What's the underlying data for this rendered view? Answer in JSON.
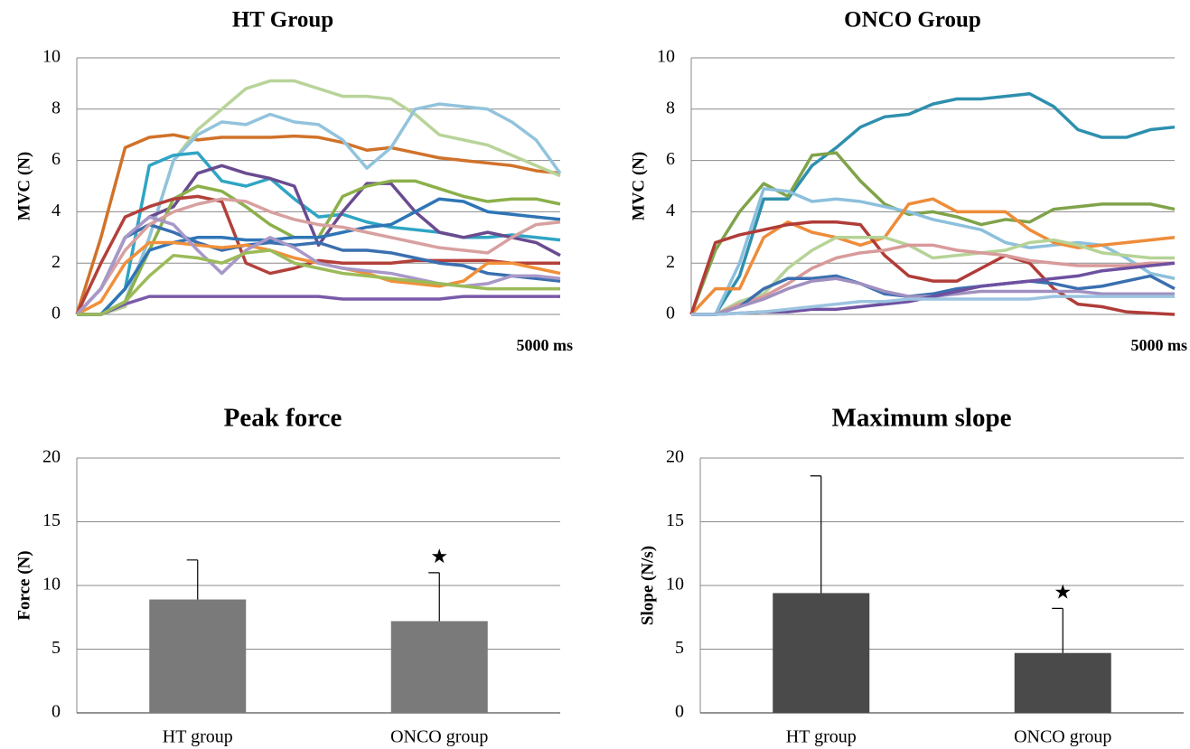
{
  "chart_data": [
    {
      "type": "line",
      "title": "HT Group",
      "ylabel": "MVC (N)",
      "xlabel": "5000 ms",
      "ylim": [
        0,
        10
      ],
      "yticks": [
        0,
        2,
        4,
        6,
        8,
        10
      ],
      "grid": true,
      "series": [
        {
          "color": "#d0722a",
          "values": [
            0,
            3,
            6.5,
            6.9,
            7.0,
            6.8,
            6.9,
            6.9,
            6.9,
            6.95,
            6.9,
            6.7,
            6.4,
            6.5,
            6.3,
            6.1,
            6.0,
            5.9,
            5.8,
            5.6,
            5.5
          ]
        },
        {
          "color": "#b8d49a",
          "values": [
            0,
            0,
            0.3,
            3,
            6,
            7.2,
            8,
            8.8,
            9.1,
            9.1,
            8.8,
            8.5,
            8.5,
            8.4,
            7.8,
            7.0,
            6.8,
            6.6,
            6.2,
            5.8,
            5.4
          ]
        },
        {
          "color": "#92c3dc",
          "values": [
            0,
            0,
            0.5,
            3,
            6,
            7.0,
            7.5,
            7.4,
            7.8,
            7.5,
            7.4,
            6.8,
            5.7,
            6.5,
            8.0,
            8.2,
            8.1,
            8.0,
            7.5,
            6.8,
            5.5
          ]
        },
        {
          "color": "#2fa5c4",
          "values": [
            0,
            0,
            1,
            5.8,
            6.2,
            6.3,
            5.2,
            5.0,
            5.3,
            4.5,
            3.8,
            3.9,
            3.6,
            3.4,
            3.3,
            3.2,
            3.0,
            3.0,
            3.1,
            3.0,
            2.9
          ]
        },
        {
          "color": "#6a4b8f",
          "values": [
            0,
            1,
            3,
            3.8,
            4.2,
            5.5,
            5.8,
            5.5,
            5.3,
            5.0,
            2.7,
            4.0,
            5.1,
            5.1,
            4.0,
            3.2,
            3.0,
            3.2,
            3.0,
            2.8,
            2.3
          ]
        },
        {
          "color": "#8bb04a",
          "values": [
            0,
            0,
            0.5,
            2.5,
            4.5,
            5.0,
            4.8,
            4.2,
            3.5,
            3.0,
            3.0,
            4.6,
            5.0,
            5.2,
            5.2,
            4.9,
            4.6,
            4.4,
            4.5,
            4.5,
            4.3
          ]
        },
        {
          "color": "#b3403a",
          "values": [
            0,
            2,
            3.8,
            4.2,
            4.5,
            4.6,
            4.4,
            2.0,
            1.6,
            1.8,
            2.1,
            2.0,
            2.0,
            2.0,
            2.1,
            2.1,
            2.1,
            2.1,
            2.0,
            2.0,
            2.0
          ]
        },
        {
          "color": "#3a6fb0",
          "values": [
            0,
            1,
            3,
            3.5,
            3.2,
            2.8,
            2.5,
            2.7,
            2.8,
            2.7,
            2.8,
            2.5,
            2.5,
            2.4,
            2.2,
            2.0,
            1.9,
            1.6,
            1.5,
            1.4,
            1.3
          ]
        },
        {
          "color": "#2e75b6",
          "values": [
            0,
            0,
            1,
            2.5,
            2.8,
            3.0,
            3.0,
            2.9,
            2.9,
            3.0,
            3.0,
            3.2,
            3.4,
            3.5,
            4.0,
            4.5,
            4.4,
            4.0,
            3.9,
            3.8,
            3.7
          ]
        },
        {
          "color": "#d8a0a0",
          "values": [
            0,
            1,
            2.5,
            3.5,
            4.0,
            4.3,
            4.5,
            4.4,
            4.0,
            3.7,
            3.5,
            3.4,
            3.2,
            3.0,
            2.8,
            2.6,
            2.5,
            2.4,
            3.0,
            3.5,
            3.6
          ]
        },
        {
          "color": "#f0903a",
          "values": [
            0,
            0.5,
            2.0,
            2.8,
            2.8,
            2.7,
            2.6,
            2.7,
            2.5,
            2.2,
            2.0,
            1.8,
            1.6,
            1.3,
            1.2,
            1.1,
            1.3,
            2.0,
            2.0,
            1.8,
            1.6
          ]
        },
        {
          "color": "#a898c8",
          "values": [
            0,
            1,
            3,
            3.8,
            3.5,
            2.5,
            1.6,
            2.5,
            3.0,
            2.6,
            2.0,
            1.8,
            1.7,
            1.6,
            1.4,
            1.2,
            1.1,
            1.2,
            1.5,
            1.5,
            1.4
          ]
        },
        {
          "color": "#7a5aa8",
          "values": [
            0,
            0,
            0.4,
            0.7,
            0.7,
            0.7,
            0.7,
            0.7,
            0.7,
            0.7,
            0.7,
            0.6,
            0.6,
            0.6,
            0.6,
            0.6,
            0.7,
            0.7,
            0.7,
            0.7,
            0.7
          ]
        },
        {
          "color": "#9bbb59",
          "values": [
            0,
            0,
            0.5,
            1.5,
            2.3,
            2.2,
            2.0,
            2.4,
            2.5,
            2.0,
            1.8,
            1.6,
            1.5,
            1.4,
            1.3,
            1.2,
            1.1,
            1.0,
            1.0,
            1.0,
            1.0
          ]
        }
      ]
    },
    {
      "type": "line",
      "title": "ONCO Group",
      "ylabel": "MVC (N)",
      "xlabel": "5000 ms",
      "ylim": [
        0,
        10
      ],
      "yticks": [
        0,
        2,
        4,
        6,
        8,
        10
      ],
      "grid": true,
      "series": [
        {
          "color": "#2e8fae",
          "values": [
            0,
            0,
            1.5,
            4.5,
            4.5,
            5.8,
            6.5,
            7.3,
            7.7,
            7.8,
            8.2,
            8.4,
            8.4,
            8.5,
            8.6,
            8.1,
            7.2,
            6.9,
            6.9,
            7.2,
            7.3
          ]
        },
        {
          "color": "#7fa34a",
          "values": [
            0,
            2.5,
            4.0,
            5.1,
            4.6,
            6.2,
            6.3,
            5.2,
            4.3,
            3.9,
            4.0,
            3.8,
            3.5,
            3.7,
            3.6,
            4.1,
            4.2,
            4.3,
            4.3,
            4.3,
            4.1
          ]
        },
        {
          "color": "#8cc0dc",
          "values": [
            0,
            0,
            2,
            4.9,
            4.8,
            4.4,
            4.5,
            4.4,
            4.2,
            4.0,
            3.7,
            3.5,
            3.3,
            2.8,
            2.6,
            2.7,
            2.8,
            2.7,
            2.2,
            1.6,
            1.4
          ]
        },
        {
          "color": "#ee8c3a",
          "values": [
            0,
            1.0,
            1.0,
            3.0,
            3.6,
            3.2,
            3.0,
            2.7,
            3.0,
            4.3,
            4.5,
            4.0,
            4.0,
            4.0,
            3.3,
            2.8,
            2.6,
            2.7,
            2.8,
            2.9,
            3.0
          ]
        },
        {
          "color": "#b03c38",
          "values": [
            0,
            2.8,
            3.1,
            3.3,
            3.5,
            3.6,
            3.6,
            3.5,
            2.3,
            1.5,
            1.3,
            1.3,
            1.8,
            2.3,
            2.0,
            1.0,
            0.4,
            0.3,
            0.1,
            0.05,
            0
          ]
        },
        {
          "color": "#b5d396",
          "values": [
            0,
            0,
            0.5,
            0.8,
            1.8,
            2.5,
            3.0,
            3.0,
            3.0,
            2.7,
            2.2,
            2.3,
            2.4,
            2.5,
            2.8,
            2.9,
            2.7,
            2.4,
            2.3,
            2.2,
            2.2
          ]
        },
        {
          "color": "#d89a9a",
          "values": [
            0,
            0,
            0.4,
            0.7,
            1.2,
            1.8,
            2.2,
            2.4,
            2.5,
            2.7,
            2.7,
            2.5,
            2.4,
            2.3,
            2.1,
            2.0,
            1.9,
            1.9,
            1.9,
            2.0,
            2.0
          ]
        },
        {
          "color": "#3a6fb0",
          "values": [
            0,
            0,
            0.3,
            1.0,
            1.4,
            1.4,
            1.5,
            1.2,
            0.8,
            0.7,
            0.8,
            1.0,
            1.1,
            1.2,
            1.3,
            1.2,
            1.0,
            1.1,
            1.3,
            1.5,
            1.0
          ]
        },
        {
          "color": "#a090c0",
          "values": [
            0,
            0,
            0.3,
            0.6,
            1.0,
            1.3,
            1.4,
            1.2,
            0.9,
            0.7,
            0.7,
            0.8,
            0.9,
            0.9,
            0.9,
            0.9,
            0.9,
            0.8,
            0.8,
            0.8,
            0.8
          ]
        },
        {
          "color": "#6e50a0",
          "values": [
            0,
            0,
            0.05,
            0.1,
            0.1,
            0.2,
            0.2,
            0.3,
            0.4,
            0.5,
            0.7,
            0.9,
            1.1,
            1.2,
            1.3,
            1.4,
            1.5,
            1.7,
            1.8,
            1.9,
            2.0
          ]
        },
        {
          "color": "#9cc4e0",
          "values": [
            0,
            0,
            0.05,
            0.1,
            0.2,
            0.3,
            0.4,
            0.5,
            0.5,
            0.6,
            0.6,
            0.6,
            0.6,
            0.6,
            0.6,
            0.7,
            0.7,
            0.7,
            0.7,
            0.7,
            0.7
          ]
        }
      ]
    },
    {
      "type": "bar",
      "title": "Peak force",
      "ylabel": "Force (N)",
      "color": "#7a7a7a",
      "categories": [
        "HT group",
        "ONCO group"
      ],
      "values": [
        8.9,
        7.2
      ],
      "errors": [
        3.1,
        3.8
      ],
      "significance": [
        null,
        "★"
      ],
      "ylim": [
        0,
        20
      ],
      "yticks": [
        0,
        5,
        10,
        15,
        20
      ],
      "grid": true
    },
    {
      "type": "bar",
      "title": "Maximum slope",
      "ylabel": "Slope (N/s)",
      "color": "#4a4a4a",
      "categories": [
        "HT group",
        "ONCO group"
      ],
      "values": [
        9.4,
        4.7
      ],
      "errors": [
        9.2,
        3.5
      ],
      "significance": [
        null,
        "★"
      ],
      "ylim": [
        0,
        20
      ],
      "yticks": [
        0,
        5,
        10,
        15,
        20
      ],
      "grid": true
    }
  ]
}
